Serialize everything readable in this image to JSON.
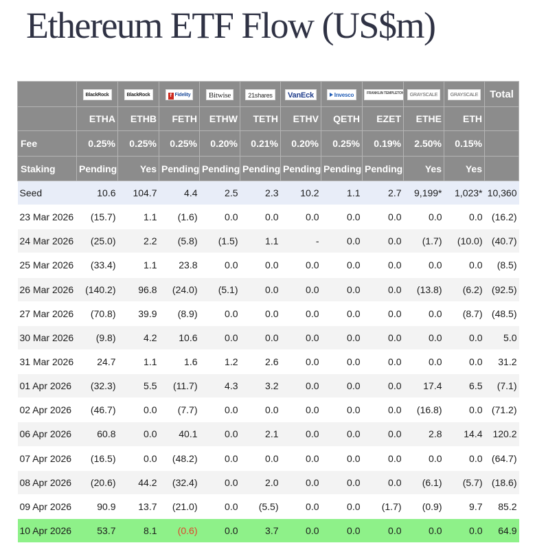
{
  "title": "Ethereum ETF Flow (US$m)",
  "header": {
    "issuers": [
      "BlackRock",
      "BlackRock",
      "Fidelity",
      "Bitwise",
      "21shares",
      "VanEck",
      "Invesco",
      "FRANKLIN TEMPLETON",
      "GRAYSCALE",
      "GRAYSCALE"
    ],
    "total_label": "Total",
    "tickers": [
      "ETHA",
      "ETHB",
      "FETH",
      "ETHW",
      "TETH",
      "ETHV",
      "QETH",
      "EZET",
      "ETHE",
      "ETH"
    ],
    "fee_label": "Fee",
    "fees": [
      "0.25%",
      "0.25%",
      "0.25%",
      "0.20%",
      "0.21%",
      "0.20%",
      "0.25%",
      "0.19%",
      "2.50%",
      "0.15%"
    ],
    "staking_label": "Staking",
    "staking": [
      "Pending",
      "Yes",
      "Pending",
      "Pending",
      "Pending",
      "Pending",
      "Pending",
      "Pending",
      "Yes",
      "Yes"
    ]
  },
  "rows": [
    {
      "date": "Seed",
      "values": [
        "10.6",
        "104.7",
        "4.4",
        "2.5",
        "2.3",
        "10.2",
        "1.1",
        "2.7",
        "9,199*",
        "1,023*",
        "10,360"
      ]
    },
    {
      "date": "23 Mar 2026",
      "values": [
        "(15.7)",
        "1.1",
        "(1.6)",
        "0.0",
        "0.0",
        "0.0",
        "0.0",
        "0.0",
        "0.0",
        "0.0",
        "(16.2)"
      ]
    },
    {
      "date": "24 Mar 2026",
      "values": [
        "(25.0)",
        "2.2",
        "(5.8)",
        "(1.5)",
        "1.1",
        "-",
        "0.0",
        "0.0",
        "(1.7)",
        "(10.0)",
        "(40.7)"
      ]
    },
    {
      "date": "25 Mar 2026",
      "values": [
        "(33.4)",
        "1.1",
        "23.8",
        "0.0",
        "0.0",
        "0.0",
        "0.0",
        "0.0",
        "0.0",
        "0.0",
        "(8.5)"
      ]
    },
    {
      "date": "26 Mar 2026",
      "values": [
        "(140.2)",
        "96.8",
        "(24.0)",
        "(5.1)",
        "0.0",
        "0.0",
        "0.0",
        "0.0",
        "(13.8)",
        "(6.2)",
        "(92.5)"
      ]
    },
    {
      "date": "27 Mar 2026",
      "values": [
        "(70.8)",
        "39.9",
        "(8.9)",
        "0.0",
        "0.0",
        "0.0",
        "0.0",
        "0.0",
        "0.0",
        "(8.7)",
        "(48.5)"
      ]
    },
    {
      "date": "30 Mar 2026",
      "values": [
        "(9.8)",
        "4.2",
        "10.6",
        "0.0",
        "0.0",
        "0.0",
        "0.0",
        "0.0",
        "0.0",
        "0.0",
        "5.0"
      ]
    },
    {
      "date": "31 Mar 2026",
      "values": [
        "24.7",
        "1.1",
        "1.6",
        "1.2",
        "2.6",
        "0.0",
        "0.0",
        "0.0",
        "0.0",
        "0.0",
        "31.2"
      ]
    },
    {
      "date": "01 Apr 2026",
      "values": [
        "(32.3)",
        "5.5",
        "(11.7)",
        "4.3",
        "3.2",
        "0.0",
        "0.0",
        "0.0",
        "17.4",
        "6.5",
        "(7.1)"
      ]
    },
    {
      "date": "02 Apr 2026",
      "values": [
        "(46.7)",
        "0.0",
        "(7.7)",
        "0.0",
        "0.0",
        "0.0",
        "0.0",
        "0.0",
        "(16.8)",
        "0.0",
        "(71.2)"
      ]
    },
    {
      "date": "06 Apr 2026",
      "values": [
        "60.8",
        "0.0",
        "40.1",
        "0.0",
        "2.1",
        "0.0",
        "0.0",
        "0.0",
        "2.8",
        "14.4",
        "120.2"
      ]
    },
    {
      "date": "07 Apr 2026",
      "values": [
        "(16.5)",
        "0.0",
        "(48.2)",
        "0.0",
        "0.0",
        "0.0",
        "0.0",
        "0.0",
        "0.0",
        "0.0",
        "(64.7)"
      ]
    },
    {
      "date": "08 Apr 2026",
      "values": [
        "(20.6)",
        "44.2",
        "(32.4)",
        "0.0",
        "2.0",
        "0.0",
        "0.0",
        "0.0",
        "(6.1)",
        "(5.7)",
        "(18.6)"
      ]
    },
    {
      "date": "09 Apr 2026",
      "values": [
        "90.9",
        "13.7",
        "(21.0)",
        "0.0",
        "(5.5)",
        "0.0",
        "0.0",
        "(1.7)",
        "(0.9)",
        "9.7",
        "85.2"
      ]
    },
    {
      "date": "10 Apr 2026",
      "values": [
        "53.7",
        "8.1",
        "(0.6)",
        "0.0",
        "3.7",
        "0.0",
        "0.0",
        "0.0",
        "0.0",
        "0.0",
        "64.9"
      ]
    }
  ],
  "colors": {
    "header_bg": "#8c8c8c",
    "seed_row_bg": "#e8edf8",
    "stripe_bg": "#f3f3f3",
    "latest_row_bg": "#8ef189",
    "negative_text": "#e03c2d",
    "title_text": "#2f3244"
  }
}
